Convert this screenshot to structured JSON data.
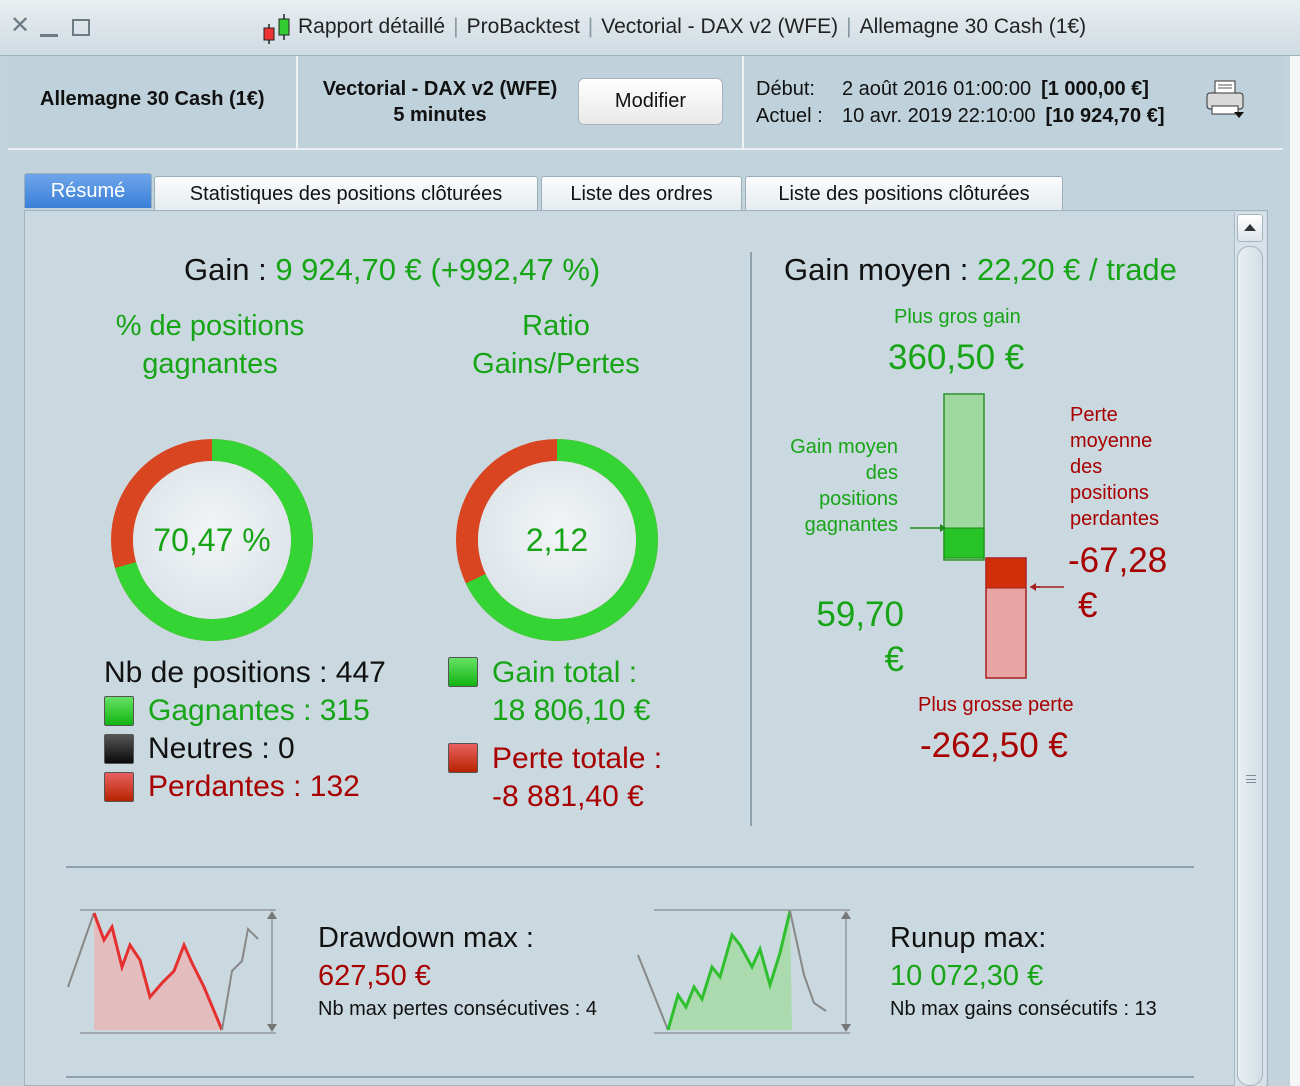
{
  "window": {
    "title_parts": [
      "Rapport détaillé",
      "ProBacktest",
      "Vectorial - DAX v2 (WFE)",
      "Allemagne 30 Cash (1€)"
    ]
  },
  "header": {
    "instrument": "Allemagne 30 Cash (1€)",
    "strategy_name": "Vectorial - DAX v2 (WFE)",
    "timeframe": "5 minutes",
    "modify_label": "Modifier",
    "start_label": "Début:",
    "start_date": "2 août 2016 01:00:00",
    "start_capital": "[1 000,00 €]",
    "current_label": "Actuel :",
    "current_date": "10 avr. 2019 22:10:00",
    "current_capital": "[10 924,70 €]"
  },
  "tabs": [
    "Résumé",
    "Statistiques des positions clôturées",
    "Liste des ordres",
    "Liste des positions clôturées"
  ],
  "summary": {
    "gain_label": "Gain : ",
    "gain_value": "9 924,70 € (+992,47 %)",
    "win_pct_title": "% de positions gagnantes",
    "win_pct_value": "70,47 %",
    "win_fraction": 0.7047,
    "ratio_title": "Ratio Gains/Pertes",
    "ratio_value": "2,12",
    "ratio_fraction": 0.679,
    "nb_positions": "Nb de positions : 447",
    "winners": "Gagnantes : 315",
    "neutral": "Neutres : 0",
    "losers": "Perdantes : 132",
    "total_gain_label": "Gain total :",
    "total_gain_value": "18 806,10 €",
    "total_loss_label": "Perte totale :",
    "total_loss_value": "-8 881,40 €"
  },
  "average": {
    "title_label": "Gain moyen : ",
    "title_value": "22,20 € / trade",
    "biggest_gain_label": "Plus gros gain",
    "biggest_gain_value": "360,50 €",
    "avg_win_label_1": "Gain moyen",
    "avg_win_label_2": "des",
    "avg_win_label_3": "positions",
    "avg_win_label_4": "gagnantes",
    "avg_win_value_1": "59,70",
    "avg_win_value_2": "€",
    "avg_loss_label_1": "Perte",
    "avg_loss_label_2": "moyenne",
    "avg_loss_label_3": "des",
    "avg_loss_label_4": "positions",
    "avg_loss_label_5": "perdantes",
    "avg_loss_value_1": "-67,28",
    "avg_loss_value_2": "€",
    "biggest_loss_label": "Plus grosse perte",
    "biggest_loss_value": "-262,50 €"
  },
  "drawdown": {
    "title": "Drawdown max :",
    "value": "627,50 €",
    "sub": "Nb max pertes consécutives : 4"
  },
  "runup": {
    "title": "Runup max:",
    "value": "10 072,30 €",
    "sub": "Nb max gains consécutifs : 13"
  },
  "colors": {
    "gain_green": "#17a417",
    "loss_red": "#a80000",
    "accent_tab": "#3b7fd8"
  }
}
